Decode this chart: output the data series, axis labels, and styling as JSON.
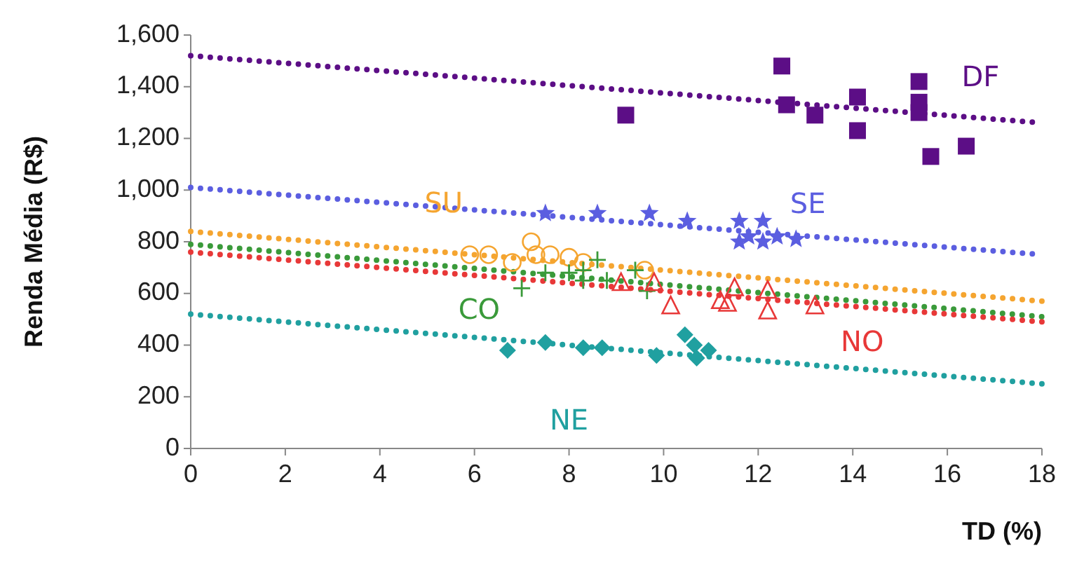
{
  "chart_data": {
    "type": "scatter",
    "xlabel": "TD (%)",
    "ylabel": "Renda Média (R$)",
    "xlim": [
      0,
      18
    ],
    "xticks": [
      0,
      2,
      4,
      6,
      8,
      10,
      12,
      14,
      16,
      18
    ],
    "ylim": [
      0,
      1600
    ],
    "yticks": [
      0,
      200,
      400,
      600,
      800,
      {
        "value": 1000,
        "label": "1,000"
      },
      {
        "value": 1200,
        "label": "1,200"
      },
      {
        "value": 1400,
        "label": "1,400"
      },
      {
        "value": 1600,
        "label": "1,600"
      }
    ],
    "grid": false,
    "series": [
      {
        "name": "DF",
        "color": "#5c0e86",
        "marker": "square",
        "x": [
          9.2,
          12.5,
          12.6,
          13.2,
          14.1,
          14.1,
          15.4,
          15.4,
          15.4,
          15.65,
          16.4
        ],
        "values": [
          1290,
          1480,
          1330,
          1290,
          1360,
          1230,
          1420,
          1340,
          1300,
          1130,
          1170
        ]
      },
      {
        "name": "SE",
        "color": "#5b5ee0",
        "marker": "star",
        "x": [
          7.5,
          8.6,
          9.7,
          10.5,
          11.6,
          11.6,
          11.8,
          12.1,
          12.1,
          12.4,
          12.8
        ],
        "values": [
          910,
          910,
          910,
          880,
          880,
          800,
          820,
          880,
          800,
          820,
          810
        ]
      },
      {
        "name": "SU",
        "color": "#f5a530",
        "marker": "circle",
        "x": [
          5.9,
          6.3,
          6.8,
          7.2,
          7.3,
          7.6,
          8.0,
          8.3,
          9.6
        ],
        "values": [
          750,
          750,
          720,
          800,
          750,
          750,
          740,
          720,
          690
        ]
      },
      {
        "name": "CO",
        "color": "#3a9a3a",
        "marker": "cross",
        "x": [
          7.0,
          7.5,
          8.0,
          8.3,
          8.6,
          8.3,
          8.8,
          9.4,
          9.65
        ],
        "values": [
          620,
          680,
          680,
          690,
          730,
          650,
          650,
          690,
          610
        ]
      },
      {
        "name": "NO",
        "color": "#e83838",
        "marker": "triangle",
        "x": [
          9.1,
          9.8,
          10.15,
          11.2,
          11.35,
          11.5,
          12.2,
          12.2,
          13.2
        ],
        "values": [
          640,
          640,
          550,
          570,
          560,
          620,
          610,
          530,
          550
        ]
      },
      {
        "name": "NE",
        "color": "#20a0a0",
        "marker": "diamond",
        "x": [
          6.7,
          7.5,
          8.3,
          8.7,
          9.85,
          10.45,
          10.65,
          10.7,
          10.95
        ],
        "values": [
          380,
          410,
          390,
          390,
          360,
          440,
          400,
          350,
          380
        ]
      },
      {
        "type": "line",
        "color": "#5c0e86",
        "line_style": "dotted",
        "x": [
          0,
          18
        ],
        "values": [
          1520,
          1260
        ]
      },
      {
        "type": "line",
        "color": "#5b5ee0",
        "line_style": "dotted",
        "x": [
          0,
          18
        ],
        "values": [
          1010,
          750
        ]
      },
      {
        "type": "line",
        "color": "#f5a530",
        "line_style": "dotted",
        "x": [
          0,
          18
        ],
        "values": [
          840,
          570
        ]
      },
      {
        "type": "line",
        "color": "#3a9a3a",
        "line_style": "dotted",
        "x": [
          0,
          18
        ],
        "values": [
          790,
          510
        ]
      },
      {
        "type": "line",
        "color": "#e83838",
        "line_style": "dotted",
        "x": [
          0,
          18
        ],
        "values": [
          760,
          490
        ]
      },
      {
        "type": "line",
        "color": "#20a0a0",
        "line_style": "dotted",
        "x": [
          0,
          18
        ],
        "values": [
          520,
          250
        ]
      }
    ]
  }
}
